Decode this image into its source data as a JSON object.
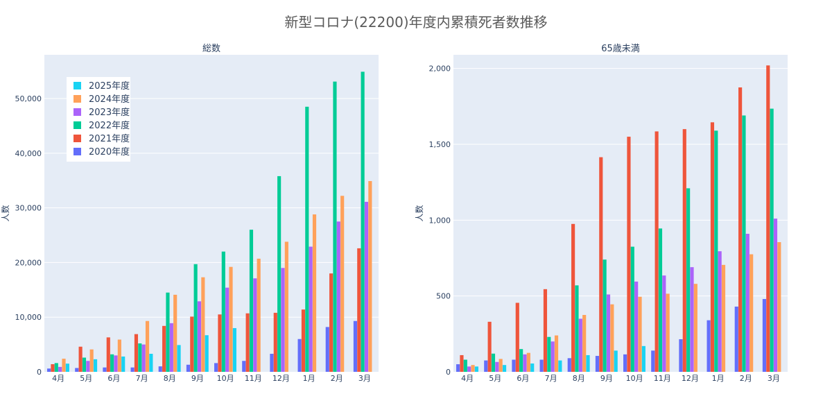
{
  "title": "新型コロナ(22200)年度内累積死者数推移",
  "colors": {
    "2020年度": "#636efa",
    "2021年度": "#ef553b",
    "2022年度": "#00cc96",
    "2023年度": "#ab63fa",
    "2024年度": "#ffa15a",
    "2025年度": "#19d3f3"
  },
  "legend": {
    "placement": "top-left inside first panel",
    "entries": [
      "2025年度",
      "2024年度",
      "2023年度",
      "2022年度",
      "2021年度",
      "2020年度"
    ]
  },
  "chart_data": [
    {
      "type": "bar",
      "title": "総数",
      "ylabel": "人数",
      "xlabel": "",
      "ylim": [
        0,
        58000
      ],
      "yticks": [
        0,
        10000,
        20000,
        30000,
        40000,
        50000
      ],
      "ytick_labels": [
        "0",
        "10,000",
        "20,000",
        "30,000",
        "40,000",
        "50,000"
      ],
      "grid": true,
      "categories": [
        "4月",
        "5月",
        "6月",
        "7月",
        "8月",
        "9月",
        "10月",
        "11月",
        "12月",
        "1月",
        "2月",
        "3月"
      ],
      "series": [
        {
          "name": "2020年度",
          "values": [
            600,
            700,
            800,
            800,
            1000,
            1300,
            1600,
            2000,
            3300,
            6000,
            8200,
            9300
          ]
        },
        {
          "name": "2021年度",
          "values": [
            1400,
            4600,
            6300,
            6900,
            8400,
            10100,
            10500,
            10700,
            10800,
            11400,
            18000,
            22600
          ]
        },
        {
          "name": "2022年度",
          "values": [
            1600,
            2600,
            3200,
            5200,
            14500,
            19700,
            22000,
            26000,
            35800,
            48500,
            53100,
            54900
          ]
        },
        {
          "name": "2023年度",
          "values": [
            900,
            2000,
            3000,
            5000,
            8900,
            12900,
            15400,
            17100,
            19000,
            22900,
            27500,
            31100
          ]
        },
        {
          "name": "2024年度",
          "values": [
            2400,
            4100,
            5900,
            9300,
            14100,
            17300,
            19200,
            20700,
            23800,
            28800,
            32200,
            34900
          ]
        },
        {
          "name": "2025年度",
          "values": [
            1500,
            2300,
            2800,
            3300,
            4900,
            6700,
            8000,
            null,
            null,
            null,
            null,
            null
          ]
        }
      ]
    },
    {
      "type": "bar",
      "title": "65歳未満",
      "ylabel": "人数",
      "xlabel": "",
      "ylim": [
        0,
        2090
      ],
      "yticks": [
        0,
        500,
        1000,
        1500,
        2000
      ],
      "ytick_labels": [
        "0",
        "500",
        "1,000",
        "1,500",
        "2,000"
      ],
      "grid": true,
      "categories": [
        "4月",
        "5月",
        "6月",
        "7月",
        "8月",
        "9月",
        "10月",
        "11月",
        "12月",
        "1月",
        "2月",
        "3月"
      ],
      "series": [
        {
          "name": "2020年度",
          "values": [
            50,
            75,
            80,
            80,
            90,
            105,
            115,
            140,
            215,
            340,
            430,
            480
          ]
        },
        {
          "name": "2021年度",
          "values": [
            110,
            330,
            455,
            545,
            975,
            1415,
            1550,
            1585,
            1600,
            1645,
            1875,
            2020
          ]
        },
        {
          "name": "2022年度",
          "values": [
            80,
            120,
            150,
            230,
            570,
            740,
            825,
            945,
            1210,
            1590,
            1690,
            1735
          ]
        },
        {
          "name": "2023年度",
          "values": [
            35,
            65,
            115,
            200,
            350,
            510,
            595,
            635,
            690,
            795,
            910,
            1010
          ]
        },
        {
          "name": "2024年度",
          "values": [
            45,
            85,
            125,
            240,
            375,
            445,
            495,
            515,
            580,
            705,
            775,
            855
          ]
        },
        {
          "name": "2025年度",
          "values": [
            35,
            45,
            55,
            75,
            110,
            140,
            170,
            null,
            null,
            null,
            null,
            null
          ]
        }
      ]
    }
  ]
}
